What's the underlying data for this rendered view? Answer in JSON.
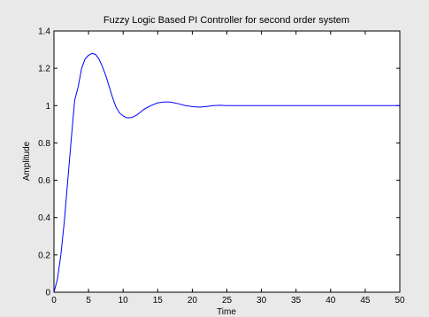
{
  "chart_data": {
    "type": "line",
    "title": "Fuzzy Logic Based PI Controller for second order system",
    "xlabel": "Time",
    "ylabel": "Amplitude",
    "xlim": [
      0,
      50
    ],
    "ylim": [
      0,
      1.4
    ],
    "x_ticks": [
      "0",
      "5",
      "10",
      "15",
      "20",
      "25",
      "30",
      "35",
      "40",
      "45",
      "50"
    ],
    "y_ticks": [
      "0",
      "0.2",
      "0.4",
      "0.6",
      "0.8",
      "1",
      "1.2",
      "1.4"
    ],
    "grid": false,
    "series": [
      {
        "color": "#0000ff",
        "x": [
          0,
          0.5,
          1,
          1.5,
          2,
          2.5,
          3,
          3.5,
          4,
          4.5,
          5,
          5.5,
          6,
          6.5,
          7,
          7.5,
          8,
          8.5,
          9,
          9.5,
          10,
          10.5,
          11,
          11.5,
          12,
          12.5,
          13,
          14,
          15,
          16,
          16.5,
          17,
          18,
          19,
          20,
          21,
          22,
          23,
          24,
          25,
          30,
          35,
          40,
          45,
          50
        ],
        "y": [
          0,
          0.07,
          0.2,
          0.38,
          0.6,
          0.82,
          1.03,
          1.1,
          1.2,
          1.25,
          1.27,
          1.28,
          1.275,
          1.25,
          1.21,
          1.16,
          1.1,
          1.04,
          0.99,
          0.96,
          0.945,
          0.935,
          0.935,
          0.94,
          0.95,
          0.965,
          0.98,
          1.0,
          1.015,
          1.02,
          1.02,
          1.018,
          1.01,
          1.0,
          0.995,
          0.992,
          0.995,
          1.0,
          1.002,
          1.0,
          1.0,
          1.0,
          1.0,
          1.0,
          1.0
        ]
      }
    ]
  }
}
